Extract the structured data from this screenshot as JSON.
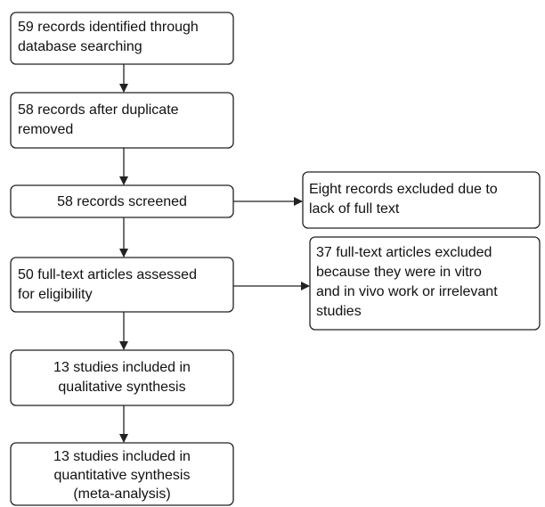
{
  "nodes": [
    {
      "lines": [
        "59 records identified through",
        "database searching"
      ]
    },
    {
      "lines": [
        "58 records after duplicate",
        "removed"
      ]
    },
    {
      "lines": [
        "58 records screened"
      ]
    },
    {
      "lines": [
        "Eight records excluded due to",
        "lack of full text"
      ]
    },
    {
      "lines": [
        "50 full-text articles assessed",
        "for eligibility"
      ]
    },
    {
      "lines": [
        "37 full-text articles excluded",
        "because they were in vitro",
        "and in vivo work or irrelevant",
        "studies"
      ]
    },
    {
      "lines": [
        "13 studies included in",
        "qualitative synthesis"
      ]
    },
    {
      "lines": [
        "13 studies included in",
        "quantitative synthesis",
        "(meta-analysis)"
      ]
    }
  ]
}
